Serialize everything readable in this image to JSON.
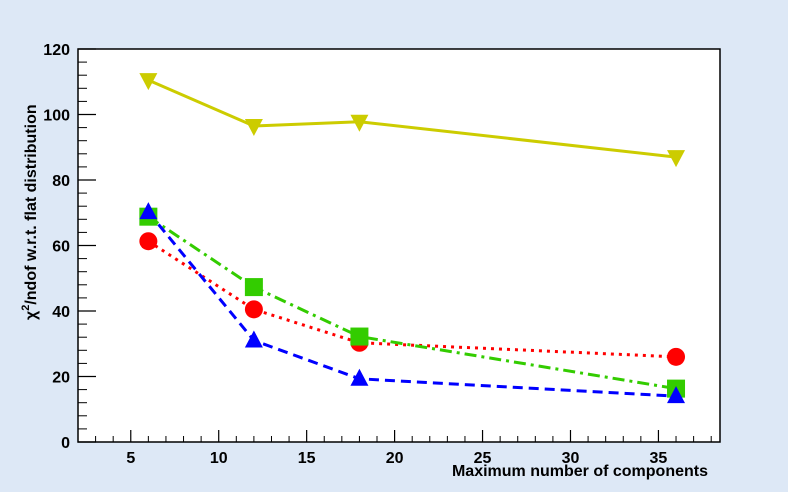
{
  "chart_data": {
    "type": "line",
    "title": "",
    "xlabel": "Maximum number of components",
    "ylabel_prefix": "χ",
    "ylabel_sup": "2",
    "ylabel_suffix": "/ndof w.r.t. flat distribution",
    "xlim": [
      2,
      38.5
    ],
    "ylim": [
      0,
      120
    ],
    "x_ticks": [
      5,
      10,
      15,
      20,
      25,
      30,
      35
    ],
    "y_ticks": [
      0,
      20,
      40,
      60,
      80,
      100,
      120
    ],
    "grid": false,
    "series": [
      {
        "name": "inverted-triangle",
        "color": "#cccc00",
        "dash": "solid",
        "marker": "triangle-down",
        "x": [
          6,
          12,
          18,
          36
        ],
        "values": [
          110.5,
          96.5,
          97.8,
          87
        ]
      },
      {
        "name": "circle",
        "color": "#ff0000",
        "dash": "dotted",
        "marker": "circle",
        "x": [
          6,
          12,
          18,
          36
        ],
        "values": [
          61.3,
          40.5,
          30.3,
          26
        ]
      },
      {
        "name": "square",
        "color": "#33cc00",
        "dash": "dashdot",
        "marker": "square",
        "x": [
          6,
          12,
          18,
          36
        ],
        "values": [
          68.8,
          47.3,
          32.2,
          16.3
        ]
      },
      {
        "name": "triangle",
        "color": "#0000ff",
        "dash": "dashed",
        "marker": "triangle-up",
        "x": [
          6,
          12,
          18,
          36
        ],
        "values": [
          70.2,
          31,
          19.3,
          14
        ]
      }
    ]
  }
}
